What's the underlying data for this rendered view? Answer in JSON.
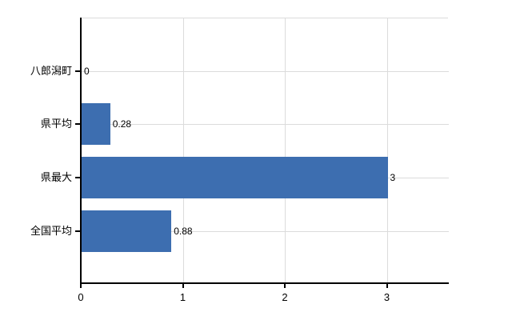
{
  "chart_data": {
    "type": "bar",
    "orientation": "horizontal",
    "title": "",
    "xlabel": "",
    "ylabel": "",
    "categories": [
      "八郎潟町",
      "県平均",
      "県最大",
      "全国平均"
    ],
    "values": [
      0,
      0.28,
      3,
      0.88
    ],
    "value_labels": [
      "0",
      "0.28",
      "3",
      "0.88"
    ],
    "xticks": [
      0,
      1,
      2,
      3
    ],
    "xtick_labels": [
      "0",
      "1",
      "2",
      "3"
    ],
    "xlim": [
      0,
      3.6
    ],
    "grid": true,
    "legend": "none",
    "colors": {
      "bar": "#3d6eb0",
      "grid": "#dcdcdc",
      "axis": "#000000",
      "text": "#000000",
      "background": "#ffffff"
    }
  }
}
